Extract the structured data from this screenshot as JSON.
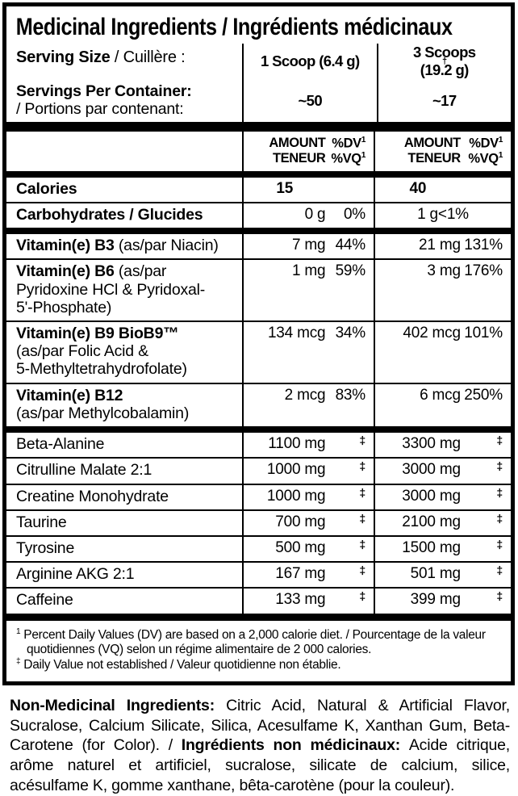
{
  "panel": {
    "title": "Medicinal Ingredients / Ingrédients médicinaux"
  },
  "serving": {
    "size_label_bold": "Serving Size",
    "size_label_rest": " / Cuillère :",
    "scoop1": "1 Scoop (6.4 g)",
    "scoop2_pre": "3 Scoops",
    "scoop2_sup": "†",
    "scoop2_post": "(19.2 g)",
    "per_label_bold": "Servings Per Container:",
    "per_label_rest": "/ Portions par contenant:",
    "per_scoop1": "~50",
    "per_scoop2": "~17"
  },
  "header": {
    "amount": "AMOUNT",
    "teneur": "TENEUR",
    "dv": "%DV",
    "vq": "%VQ",
    "footnote_sup": "1"
  },
  "table": {
    "groups": [
      {
        "name": "macros",
        "rows": [
          {
            "label_bold": "Calories",
            "label_rest": "",
            "c1": {
              "amt": "15",
              "bold": true,
              "center": true
            },
            "c2": {
              "amt": "40",
              "bold": true,
              "center": true
            }
          },
          {
            "label_bold": "Carbohydrates / Glucides",
            "label_rest": "",
            "c1": {
              "amt": "0 g",
              "dv": "0%"
            },
            "c2": {
              "join": "1 g<1%"
            }
          }
        ]
      },
      {
        "name": "vitamins",
        "rows": [
          {
            "label_bold": "Vitamin(e) B3",
            "label_rest": " (as/par Niacin)",
            "c1": {
              "amt": "7 mg",
              "dv": "44%"
            },
            "c2": {
              "amt": "21 mg",
              "dv": "131%"
            }
          },
          {
            "label_bold": "Vitamin(e) B6",
            "label_rest": " (as/par\nPyridoxine HCl & Pyridoxal-\n5'-Phosphate)",
            "c1": {
              "amt": "1 mg",
              "dv": "59%"
            },
            "c2": {
              "amt": "3 mg",
              "dv": "176%"
            }
          },
          {
            "label_bold": "Vitamin(e) B9 BioB9™",
            "label_rest": "\n(as/par Folic Acid &\n5-Methyltetrahydrofolate)",
            "c1": {
              "amt": "134 mcg",
              "dv": "34%"
            },
            "c2": {
              "amt": "402 mcg",
              "dv": "101%"
            }
          },
          {
            "label_bold": "Vitamin(e) B12",
            "label_rest": "\n(as/par Methylcobalamin)",
            "c1": {
              "amt": "2 mcg",
              "dv": "83%"
            },
            "c2": {
              "amt": "6 mcg",
              "dv": "250%"
            }
          }
        ]
      },
      {
        "name": "aminos",
        "rows": [
          {
            "label_bold": "",
            "label_rest": "Beta-Alanine",
            "c1": {
              "amt": "1100 mg",
              "dv": "‡"
            },
            "c2": {
              "amt": "3300 mg",
              "dv": "‡"
            }
          },
          {
            "label_bold": "",
            "label_rest": "Citrulline Malate 2:1",
            "c1": {
              "amt": "1000 mg",
              "dv": "‡"
            },
            "c2": {
              "amt": "3000 mg",
              "dv": "‡"
            }
          },
          {
            "label_bold": "",
            "label_rest": "Creatine Monohydrate",
            "c1": {
              "amt": "1000 mg",
              "dv": "‡"
            },
            "c2": {
              "amt": "3000 mg",
              "dv": "‡"
            }
          },
          {
            "label_bold": "",
            "label_rest": "Taurine",
            "c1": {
              "amt": "700 mg",
              "dv": "‡"
            },
            "c2": {
              "amt": "2100 mg",
              "dv": "‡"
            }
          },
          {
            "label_bold": "",
            "label_rest": "Tyrosine",
            "c1": {
              "amt": "500 mg",
              "dv": "‡"
            },
            "c2": {
              "amt": "1500 mg",
              "dv": "‡"
            }
          },
          {
            "label_bold": "",
            "label_rest": "Arginine AKG 2:1",
            "c1": {
              "amt": "167 mg",
              "dv": "‡"
            },
            "c2": {
              "amt": "501 mg",
              "dv": "‡"
            }
          },
          {
            "label_bold": "",
            "label_rest": "Caffeine",
            "c1": {
              "amt": "133 mg",
              "dv": "‡"
            },
            "c2": {
              "amt": "399 mg",
              "dv": "‡"
            }
          }
        ]
      }
    ]
  },
  "footnotes": [
    {
      "marker": "1",
      "text": "Percent Daily Values (DV) are based on a 2,000 calorie diet. / Pourcentage de la valeur quotidiennes (VQ) selon un régime alimentaire de 2 000 calories."
    },
    {
      "marker": "‡",
      "text": "Daily Value not established / Valeur quotidienne non établie."
    }
  ],
  "non_medicinal": {
    "segments": [
      {
        "bold": true,
        "text": "Non-Medicinal Ingredients: "
      },
      {
        "bold": false,
        "text": "Citric Acid, Natural & Artificial Flavor, Sucralose, Calcium Silicate, Silica, Acesulfame K, Xanthan Gum, Beta-Carotene (for Color). / "
      },
      {
        "bold": true,
        "text": "Ingrédients non médicinaux: "
      },
      {
        "bold": false,
        "text": "Acide citrique, arôme naturel et artificiel, sucralose, silicate de calcium, silice, acésulfame K, gomme xanthane, bêta-carotène (pour la couleur)."
      }
    ]
  },
  "colors": {
    "ink": "#000000",
    "paper": "#ffffff"
  }
}
